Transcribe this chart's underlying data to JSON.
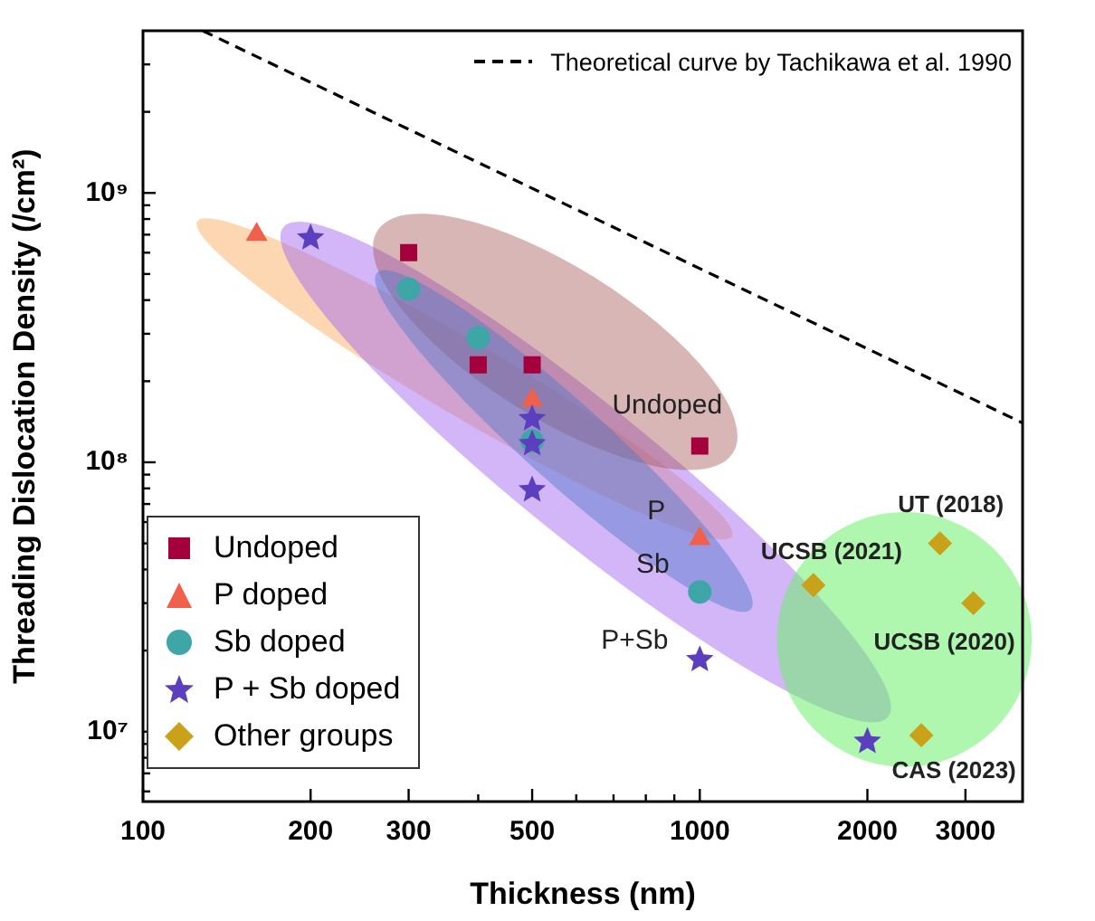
{
  "chart_data": {
    "type": "scatter",
    "xlabel": "Thickness (nm)",
    "ylabel": "Threading Dislocation Density (/cm²)",
    "log": "xy",
    "grid": false,
    "legend": "bottom left",
    "xlim": [
      100,
      3800
    ],
    "xticks": [
      100,
      200,
      300,
      {
        "value": 400,
        "label": null
      },
      500,
      {
        "value": 600,
        "label": null
      },
      {
        "value": 700,
        "label": null
      },
      {
        "value": 800,
        "label": null
      },
      {
        "value": 900,
        "label": null
      },
      1000,
      2000,
      3000
    ],
    "ylim": [
      5500000,
      4000000000
    ],
    "yticks": [
      {
        "value": 6000000.0,
        "label": null
      },
      {
        "value": 7000000.0,
        "label": null
      },
      {
        "value": 8000000.0,
        "label": null
      },
      {
        "value": 9000000.0,
        "label": null
      },
      {
        "value": 10000000.0,
        "label": "10⁷"
      },
      {
        "value": 20000000.0,
        "label": null
      },
      {
        "value": 30000000.0,
        "label": null
      },
      {
        "value": 40000000.0,
        "label": null
      },
      {
        "value": 50000000.0,
        "label": null
      },
      {
        "value": 60000000.0,
        "label": null
      },
      {
        "value": 70000000.0,
        "label": null
      },
      {
        "value": 80000000.0,
        "label": null
      },
      {
        "value": 90000000.0,
        "label": null
      },
      {
        "value": 100000000.0,
        "label": "10⁸"
      },
      {
        "value": 200000000.0,
        "label": null
      },
      {
        "value": 300000000.0,
        "label": null
      },
      {
        "value": 400000000.0,
        "label": null
      },
      {
        "value": 500000000.0,
        "label": null
      },
      {
        "value": 600000000.0,
        "label": null
      },
      {
        "value": 700000000.0,
        "label": null
      },
      {
        "value": 800000000.0,
        "label": null
      },
      {
        "value": 900000000.0,
        "label": null
      },
      {
        "value": 1000000000.0,
        "label": "10⁹"
      },
      {
        "value": 2000000000.0,
        "label": null
      },
      {
        "value": 3000000000.0,
        "label": null
      }
    ],
    "series": [
      {
        "type": "line",
        "color": "#000000",
        "line_style": "dashed",
        "marker": "none",
        "x": [
          128,
          3800
        ],
        "values": [
          4000000000,
          140000000
        ]
      },
      {
        "name": "Undoped",
        "color": "#a3003c",
        "marker": "square",
        "x": [
          300,
          400,
          500,
          1000
        ],
        "values": [
          600000000,
          230000000,
          230000000,
          115000000
        ]
      },
      {
        "name": "P doped",
        "color": "#f0604a",
        "marker": "triangle",
        "x": [
          160,
          500,
          1000
        ],
        "values": [
          700000000,
          170000000,
          52000000
        ]
      },
      {
        "name": "Sb doped",
        "color": "#3ea6a6",
        "marker": "circle",
        "x": [
          300,
          400,
          500,
          1000
        ],
        "values": [
          440000000,
          290000000,
          120000000,
          33000000
        ]
      },
      {
        "name": "P + Sb doped",
        "color": "#5b3fbf",
        "marker": "star",
        "x": [
          200,
          500,
          500,
          500,
          1000,
          2000
        ],
        "values": [
          680000000,
          145000000,
          117000000,
          79000000,
          18500000,
          9200000
        ]
      },
      {
        "name": "Other groups",
        "color": "#c9a21a",
        "marker": "diamond",
        "x": [
          1600,
          2700,
          3100,
          2500
        ],
        "values": [
          35000000,
          50000000,
          30000000,
          9700000
        ]
      }
    ],
    "annotations": [
      {
        "text": "Undoped",
        "x": 1000,
        "y": 115000000
      },
      {
        "text": "P",
        "x": 1000,
        "y": 52000000
      },
      {
        "text": "Sb",
        "x": 1000,
        "y": 33000000
      },
      {
        "text": "P+Sb",
        "x": 1000,
        "y": 18500000
      },
      {
        "text": "UCSB (2021)",
        "x": 1600,
        "y": 35000000
      },
      {
        "text": "UT (2018)",
        "x": 2700,
        "y": 50000000
      },
      {
        "text": "UCSB (2020)",
        "x": 3100,
        "y": 30000000
      },
      {
        "text": "CAS (2023)",
        "x": 2500,
        "y": 9700000
      },
      "Theoretical curve by Tachikawa et al. 1990"
    ]
  }
}
